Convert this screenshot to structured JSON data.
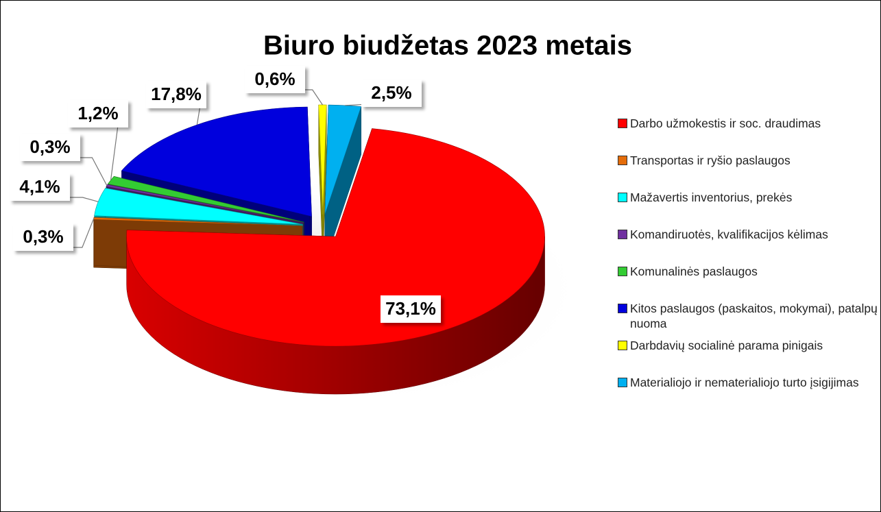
{
  "chart_data": {
    "type": "pie3d",
    "title": "Biuro biudžetas 2023 metais",
    "categories": [
      "Darbo užmokestis ir soc. draudimas",
      "Transportas ir ryšio paslaugos",
      "Mažavertis inventorius, prekės",
      "Komandiruotės, kvalifikacijos kėlimas",
      "Komunalinės paslaugos",
      "Kitos paslaugos (paskaitos, mokymai), patalpų nuoma",
      "Darbdavių socialinė parama pinigais",
      "Materialiojo ir nematerialiojo turto įsigijimas"
    ],
    "values": [
      73.1,
      0.3,
      4.1,
      0.3,
      1.2,
      17.8,
      0.6,
      2.5
    ],
    "value_labels": [
      "73,1%",
      "0,3%",
      "4,1%",
      "0,3%",
      "1,2%",
      "17,8%",
      "0,6%",
      "2,5%"
    ],
    "colors": [
      "#ff0000",
      "#e46c0a",
      "#00ffff",
      "#7030a0",
      "#33cc33",
      "#0000dd",
      "#ffff00",
      "#00b0f0"
    ],
    "legend": "right"
  }
}
